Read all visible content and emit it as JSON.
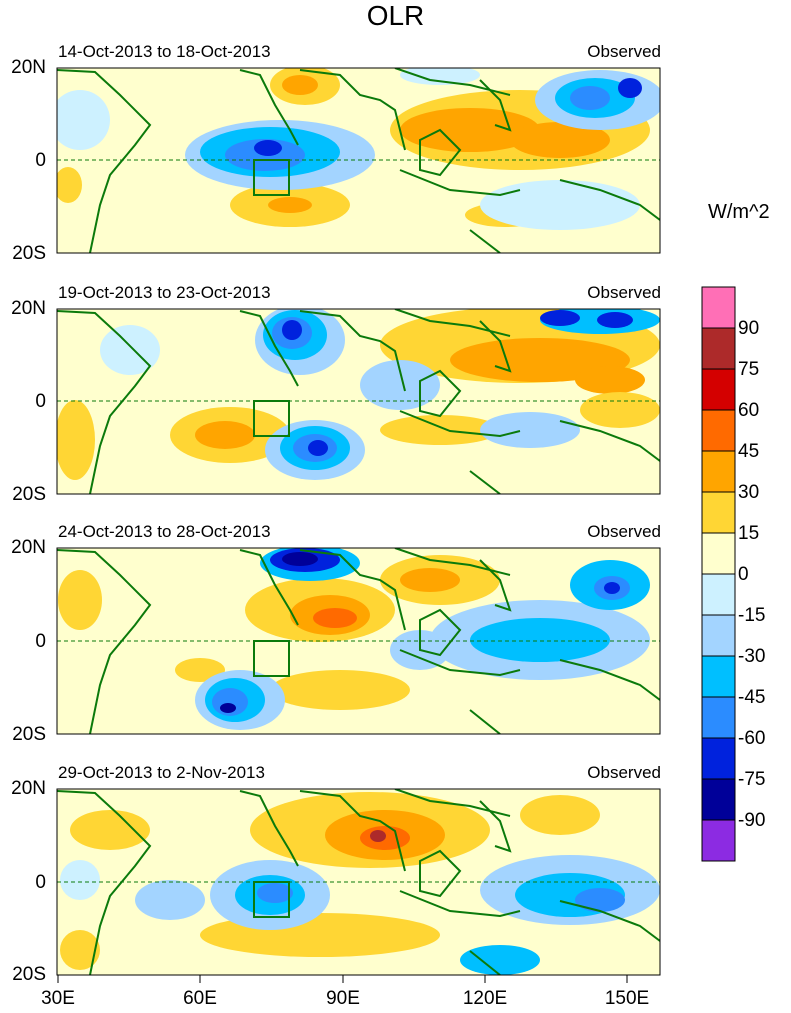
{
  "title": "OLR",
  "units": "W/m^2",
  "colorbar": {
    "labels": [
      "90",
      "75",
      "60",
      "45",
      "30",
      "15",
      "0",
      "-15",
      "-30",
      "-45",
      "-60",
      "-75",
      "-90"
    ],
    "colors": [
      "#ff6fb6",
      "#ad2a2a",
      "#d40000",
      "#ff6a00",
      "#ffa500",
      "#ffd634",
      "#ffffce",
      "#cdf1ff",
      "#a3d4ff",
      "#00bfff",
      "#2b8cff",
      "#0022dd",
      "#000099",
      "#8c2be2"
    ]
  },
  "axes": {
    "lat_labels": [
      "20N",
      "0",
      "20S"
    ],
    "lon_labels": [
      "30E",
      "60E",
      "90E",
      "120E",
      "150E"
    ]
  },
  "panels": [
    {
      "period": "14-Oct-2013 to 18-Oct-2013",
      "label": "Observed"
    },
    {
      "period": "19-Oct-2013 to 23-Oct-2013",
      "label": "Observed"
    },
    {
      "period": "24-Oct-2013 to 28-Oct-2013",
      "label": "Observed"
    },
    {
      "period": "29-Oct-2013 to 2-Nov-2013",
      "label": "Observed"
    }
  ]
}
